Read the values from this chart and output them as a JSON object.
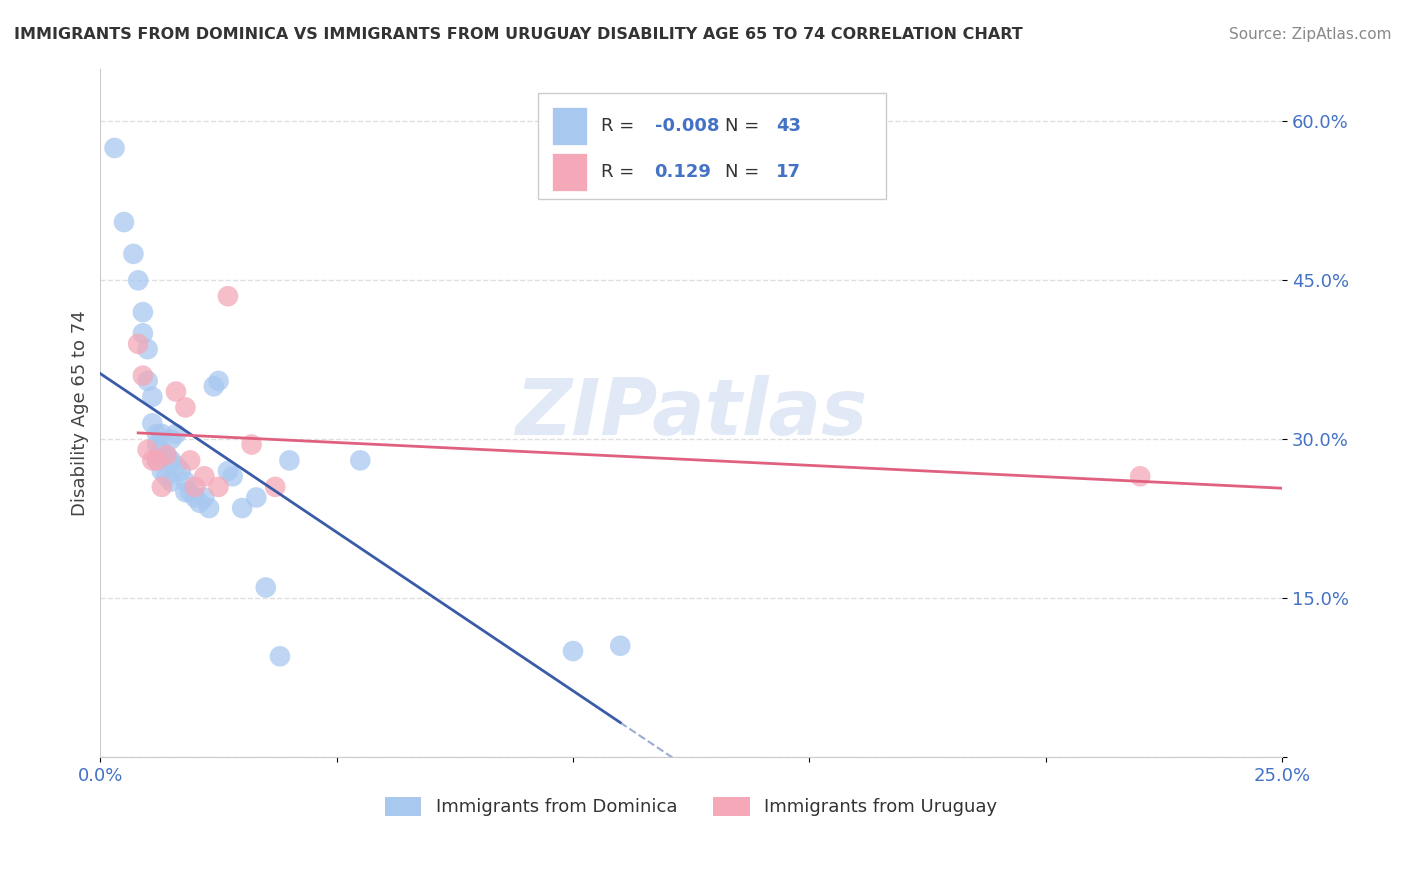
{
  "title": "IMMIGRANTS FROM DOMINICA VS IMMIGRANTS FROM URUGUAY DISABILITY AGE 65 TO 74 CORRELATION CHART",
  "source": "Source: ZipAtlas.com",
  "ylabel": "Disability Age 65 to 74",
  "xlim": [
    0.0,
    0.25
  ],
  "ylim": [
    0.0,
    0.65
  ],
  "xticks": [
    0.0,
    0.05,
    0.1,
    0.15,
    0.2,
    0.25
  ],
  "xticklabels": [
    "0.0%",
    "",
    "",
    "",
    "",
    "25.0%"
  ],
  "yticks": [
    0.0,
    0.15,
    0.3,
    0.45,
    0.6
  ],
  "yticklabels": [
    "",
    "15.0%",
    "30.0%",
    "45.0%",
    "60.0%"
  ],
  "dominica_color": "#a8c8f0",
  "uruguay_color": "#f4a8b8",
  "dominica_line_color": "#3a5ca8",
  "uruguay_line_color": "#e06080",
  "watermark": "ZIPatlas",
  "legend_r_dominica": "-0.008",
  "legend_n_dominica": "43",
  "legend_r_uruguay": "0.129",
  "legend_n_uruguay": "17",
  "dominica_x": [
    0.003,
    0.005,
    0.007,
    0.008,
    0.009,
    0.009,
    0.01,
    0.01,
    0.011,
    0.011,
    0.012,
    0.012,
    0.012,
    0.013,
    0.013,
    0.013,
    0.014,
    0.014,
    0.015,
    0.015,
    0.015,
    0.016,
    0.016,
    0.017,
    0.018,
    0.018,
    0.019,
    0.02,
    0.021,
    0.022,
    0.023,
    0.024,
    0.025,
    0.027,
    0.028,
    0.03,
    0.033,
    0.035,
    0.038,
    0.04,
    0.055,
    0.1,
    0.11
  ],
  "dominica_y": [
    0.575,
    0.505,
    0.475,
    0.45,
    0.42,
    0.4,
    0.385,
    0.355,
    0.34,
    0.315,
    0.305,
    0.295,
    0.28,
    0.305,
    0.29,
    0.27,
    0.285,
    0.265,
    0.3,
    0.28,
    0.26,
    0.305,
    0.275,
    0.27,
    0.26,
    0.25,
    0.25,
    0.245,
    0.24,
    0.245,
    0.235,
    0.35,
    0.355,
    0.27,
    0.265,
    0.235,
    0.245,
    0.16,
    0.095,
    0.28,
    0.28,
    0.1,
    0.105
  ],
  "uruguay_x": [
    0.008,
    0.009,
    0.01,
    0.011,
    0.012,
    0.013,
    0.014,
    0.016,
    0.018,
    0.019,
    0.02,
    0.022,
    0.025,
    0.027,
    0.032,
    0.037,
    0.22
  ],
  "uruguay_y": [
    0.39,
    0.36,
    0.29,
    0.28,
    0.28,
    0.255,
    0.285,
    0.345,
    0.33,
    0.28,
    0.255,
    0.265,
    0.255,
    0.435,
    0.295,
    0.255,
    0.265
  ],
  "background_color": "#ffffff",
  "grid_color": "#d8d8d8"
}
